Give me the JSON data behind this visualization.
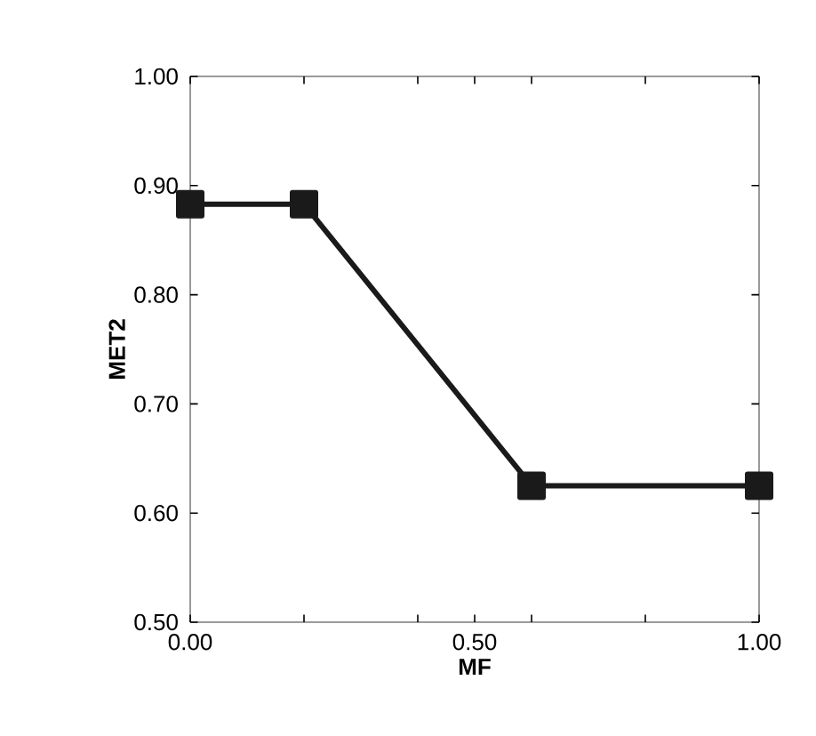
{
  "chart_data": {
    "type": "line",
    "xlabel": "MF",
    "ylabel": "MET2",
    "x": [
      0.0,
      0.2,
      0.6,
      1.0
    ],
    "series": [
      {
        "color": "#1a1a1a",
        "values": [
          0.883,
          0.883,
          0.625,
          0.625
        ]
      }
    ],
    "xlim": [
      0,
      1
    ],
    "ylim": [
      0.5,
      1.0
    ],
    "xticks": [
      {
        "value": 0,
        "label": "0.00"
      },
      {
        "value": 0.2,
        "label": null
      },
      {
        "value": 0.4,
        "label": null
      },
      {
        "value": 0.5,
        "label": "0.50"
      },
      {
        "value": 0.6,
        "label": null
      },
      {
        "value": 0.8,
        "label": null
      },
      {
        "value": 1,
        "label": "1.00"
      }
    ],
    "yticks": [
      {
        "value": 0.5,
        "label": "0.50"
      },
      {
        "value": 0.6,
        "label": "0.60"
      },
      {
        "value": 0.7,
        "label": "0.70"
      },
      {
        "value": 0.8,
        "label": "0.80"
      },
      {
        "value": 0.9,
        "label": "0.90"
      },
      {
        "value": 1.0,
        "label": "1.00"
      }
    ],
    "marker": "square",
    "line_style": "solid"
  }
}
